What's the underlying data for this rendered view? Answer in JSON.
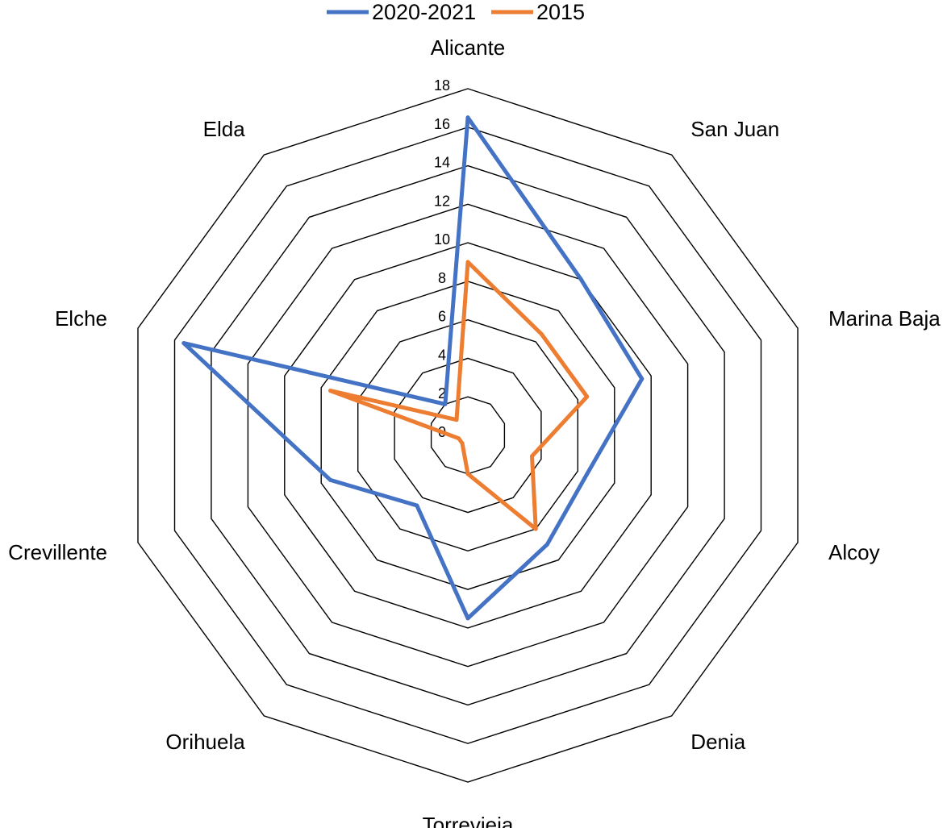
{
  "chart_data": {
    "type": "radar",
    "categories": [
      "Alicante",
      "San Juan",
      "Marina Baja",
      "Alcoy",
      "Denia",
      "Torrevieja",
      "Orihuela",
      "Crevillente",
      "Elche",
      "Elda"
    ],
    "series": [
      {
        "name": "2020-2021",
        "color": "#4472C4",
        "values": [
          16.5,
          10.0,
          9.5,
          6.5,
          7.0,
          9.5,
          4.5,
          7.5,
          15.5,
          2.0
        ]
      },
      {
        "name": "2015",
        "color": "#ED7D31",
        "values": [
          9.0,
          6.5,
          6.5,
          3.5,
          6.0,
          2.0,
          0.5,
          0.5,
          7.5,
          1.0
        ]
      }
    ],
    "r_range": [
      0,
      18
    ],
    "r_ticks": [
      0,
      2,
      4,
      6,
      8,
      10,
      12,
      14,
      16,
      18
    ],
    "r_tick_labels": [
      "0",
      "2",
      "4",
      "6",
      "8",
      "10",
      "12",
      "14",
      "16",
      "18"
    ],
    "legend": {
      "position": "top",
      "items": [
        "2020-2021",
        "2015"
      ]
    },
    "grid": true
  }
}
